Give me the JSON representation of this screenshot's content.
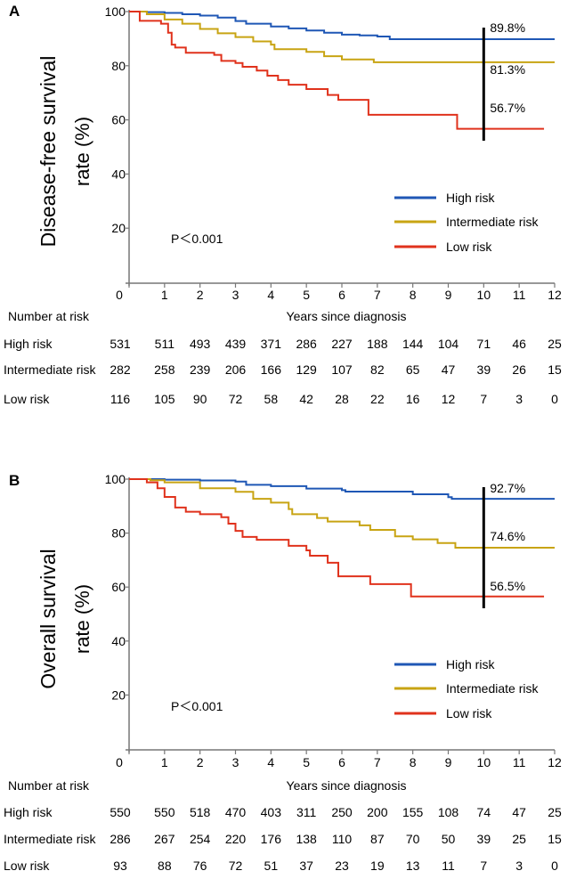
{
  "colors": {
    "high": "#1f57b5",
    "intermediate": "#c8a413",
    "low": "#e0321c",
    "axis": "#777777"
  },
  "chart_data": [
    {
      "type": "line",
      "panel_label": "A",
      "ylabel_lines": [
        "Disease-free survival",
        "rate (%)"
      ],
      "xlabel": "Years since diagnosis",
      "xlim": [
        0,
        12
      ],
      "ylim": [
        0,
        100
      ],
      "xticks": [
        "0",
        "1",
        "2",
        "3",
        "4",
        "5",
        "6",
        "7",
        "8",
        "9",
        "10",
        "11",
        "12"
      ],
      "yticks": [
        "20",
        "40",
        "60",
        "80",
        "100"
      ],
      "p_value": "P＜0.001",
      "legend": [
        "High risk",
        "Intermediate risk",
        "Low risk"
      ],
      "legend_position": "bottom-right",
      "marker_year": 10,
      "annotations": [
        "89.8%",
        "81.3%",
        "56.7%"
      ],
      "series": [
        {
          "name": "High risk",
          "steps": [
            [
              0,
              100
            ],
            [
              0.5,
              99.8
            ],
            [
              1,
              99.5
            ],
            [
              1.5,
              99
            ],
            [
              2,
              98.5
            ],
            [
              2.5,
              97.8
            ],
            [
              3,
              96.5
            ],
            [
              3.3,
              95.5
            ],
            [
              4,
              94.5
            ],
            [
              4.5,
              93.8
            ],
            [
              5,
              93
            ],
            [
              5.5,
              92.2
            ],
            [
              6,
              91.5
            ],
            [
              6.5,
              91.2
            ],
            [
              7,
              90.8
            ],
            [
              7.35,
              89.8
            ]
          ],
          "end": 12
        },
        {
          "name": "Intermediate risk",
          "steps": [
            [
              0,
              100
            ],
            [
              0.5,
              99
            ],
            [
              1,
              97.1
            ],
            [
              1.5,
              95.5
            ],
            [
              2,
              93.6
            ],
            [
              2.5,
              92
            ],
            [
              3,
              90.6
            ],
            [
              3.5,
              89
            ],
            [
              4,
              87.8
            ],
            [
              4.1,
              86.1
            ],
            [
              5,
              85.1
            ],
            [
              5.5,
              83.5
            ],
            [
              6,
              82.3
            ],
            [
              6.9,
              81.3
            ]
          ],
          "end": 12
        },
        {
          "name": "Low risk",
          "steps": [
            [
              0,
              100
            ],
            [
              0.3,
              96.6
            ],
            [
              0.9,
              95.5
            ],
            [
              1.1,
              92.2
            ],
            [
              1.2,
              87.8
            ],
            [
              1.3,
              86.7
            ],
            [
              1.6,
              84.8
            ],
            [
              2.4,
              84
            ],
            [
              2.6,
              81.8
            ],
            [
              3.0,
              81
            ],
            [
              3.2,
              79.6
            ],
            [
              3.6,
              78.2
            ],
            [
              3.9,
              76.3
            ],
            [
              4.2,
              74.7
            ],
            [
              4.5,
              73
            ],
            [
              5,
              71.4
            ],
            [
              5.6,
              69.2
            ],
            [
              5.9,
              67.4
            ],
            [
              6.75,
              61.9
            ],
            [
              9.25,
              56.7
            ]
          ],
          "end": 11.7
        }
      ],
      "risk_table": {
        "title": "Number at risk",
        "rows": [
          {
            "label": "High risk",
            "values": [
              "531",
              "511",
              "493",
              "439",
              "371",
              "286",
              "227",
              "188",
              "144",
              "104",
              "71",
              "46",
              "25"
            ]
          },
          {
            "label": "Intermediate risk",
            "values": [
              "282",
              "258",
              "239",
              "206",
              "166",
              "129",
              "107",
              "82",
              "65",
              "47",
              "39",
              "26",
              "15"
            ]
          },
          {
            "label": "Low risk",
            "values": [
              "116",
              "105",
              "90",
              "72",
              "58",
              "42",
              "28",
              "22",
              "16",
              "12",
              "7",
              "3",
              "0"
            ]
          }
        ]
      }
    },
    {
      "type": "line",
      "panel_label": "B",
      "ylabel_lines": [
        "Overall survival",
        "rate (%)"
      ],
      "xlabel": "Years since diagnosis",
      "xlim": [
        0,
        12
      ],
      "ylim": [
        0,
        100
      ],
      "xticks": [
        "0",
        "1",
        "2",
        "3",
        "4",
        "5",
        "6",
        "7",
        "8",
        "9",
        "10",
        "11",
        "12"
      ],
      "yticks": [
        "20",
        "40",
        "60",
        "80",
        "100"
      ],
      "p_value": "P＜0.001",
      "legend": [
        "High risk",
        "Intermediate risk",
        "Low risk"
      ],
      "legend_position": "bottom-right",
      "marker_year": 10,
      "annotations": [
        "92.7%",
        "74.6%",
        "56.5%"
      ],
      "series": [
        {
          "name": "High risk",
          "steps": [
            [
              0,
              100
            ],
            [
              1,
              99.8
            ],
            [
              2,
              99.5
            ],
            [
              3,
              99.1
            ],
            [
              3.3,
              97.9
            ],
            [
              4,
              97.4
            ],
            [
              5,
              96.5
            ],
            [
              6,
              95.9
            ],
            [
              6.1,
              95.4
            ],
            [
              8,
              94.4
            ],
            [
              9,
              93.3
            ],
            [
              9.1,
              92.7
            ]
          ],
          "end": 12
        },
        {
          "name": "Intermediate risk",
          "steps": [
            [
              0,
              100
            ],
            [
              0.6,
              99.6
            ],
            [
              1,
              98.8
            ],
            [
              2,
              96.6
            ],
            [
              3,
              95.3
            ],
            [
              3.5,
              92.7
            ],
            [
              4,
              91.3
            ],
            [
              4.5,
              88.9
            ],
            [
              4.6,
              87
            ],
            [
              5.3,
              85.6
            ],
            [
              5.6,
              84.3
            ],
            [
              6.5,
              82.9
            ],
            [
              6.8,
              81.2
            ],
            [
              7.5,
              78.8
            ],
            [
              8,
              77.7
            ],
            [
              8.7,
              76.3
            ],
            [
              9.2,
              74.6
            ]
          ],
          "end": 12
        },
        {
          "name": "Low risk",
          "steps": [
            [
              0,
              100
            ],
            [
              0.5,
              98.8
            ],
            [
              0.8,
              96.6
            ],
            [
              1,
              93.4
            ],
            [
              1.3,
              89.5
            ],
            [
              1.6,
              87.9
            ],
            [
              2,
              87
            ],
            [
              2.6,
              85.9
            ],
            [
              2.8,
              83.5
            ],
            [
              3.0,
              80.8
            ],
            [
              3.2,
              78.6
            ],
            [
              3.6,
              77.5
            ],
            [
              4.5,
              75.3
            ],
            [
              5.0,
              73.6
            ],
            [
              5.1,
              71.6
            ],
            [
              5.6,
              69
            ],
            [
              5.9,
              64
            ],
            [
              6.8,
              61.1
            ],
            [
              7.95,
              56.5
            ]
          ],
          "end": 11.7
        }
      ],
      "risk_table": {
        "title": "Number at risk",
        "rows": [
          {
            "label": "High risk",
            "values": [
              "550",
              "550",
              "518",
              "470",
              "403",
              "311",
              "250",
              "200",
              "155",
              "108",
              "74",
              "47",
              "25"
            ]
          },
          {
            "label": "Intermediate risk",
            "values": [
              "286",
              "267",
              "254",
              "220",
              "176",
              "138",
              "110",
              "87",
              "70",
              "50",
              "39",
              "25",
              "15"
            ]
          },
          {
            "label": "Low risk",
            "values": [
              "93",
              "88",
              "76",
              "72",
              "51",
              "37",
              "23",
              "19",
              "13",
              "11",
              "7",
              "3",
              "0"
            ]
          }
        ]
      }
    }
  ]
}
